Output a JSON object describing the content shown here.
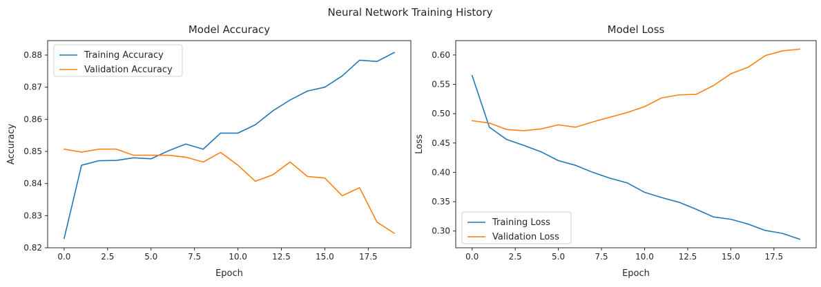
{
  "figure": {
    "suptitle": "Neural Network Training History"
  },
  "chart_data": [
    {
      "type": "line",
      "title": "Model Accuracy",
      "xlabel": "Epoch",
      "ylabel": "Accuracy",
      "xlim": [
        -0.95,
        19.95
      ],
      "ylim": [
        0.82,
        0.8845
      ],
      "xticks": [
        0.0,
        2.5,
        5.0,
        7.5,
        10.0,
        12.5,
        15.0,
        17.5
      ],
      "xtick_labels": [
        "0.0",
        "2.5",
        "5.0",
        "7.5",
        "10.0",
        "12.5",
        "15.0",
        "17.5"
      ],
      "yticks": [
        0.82,
        0.83,
        0.84,
        0.85,
        0.86,
        0.87,
        0.88
      ],
      "ytick_labels": [
        "0.82",
        "0.83",
        "0.84",
        "0.85",
        "0.86",
        "0.87",
        "0.88"
      ],
      "grid": false,
      "legend": "upper-left",
      "x": [
        0,
        1,
        2,
        3,
        4,
        5,
        6,
        7,
        8,
        9,
        10,
        11,
        12,
        13,
        14,
        15,
        16,
        17,
        18,
        19
      ],
      "series": [
        {
          "name": "Training Accuracy",
          "color": "#1f77b4",
          "values": [
            0.8229,
            0.8457,
            0.8471,
            0.8472,
            0.848,
            0.8477,
            0.8502,
            0.8523,
            0.8507,
            0.8557,
            0.8557,
            0.8583,
            0.8626,
            0.866,
            0.8688,
            0.87,
            0.8735,
            0.8784,
            0.878,
            0.8808
          ]
        },
        {
          "name": "Validation Accuracy",
          "color": "#ff7f0e",
          "values": [
            0.8507,
            0.8498,
            0.8507,
            0.8507,
            0.8488,
            0.8488,
            0.8488,
            0.8482,
            0.8467,
            0.8497,
            0.8457,
            0.8407,
            0.8427,
            0.8467,
            0.8422,
            0.8417,
            0.8362,
            0.8387,
            0.828,
            0.8245
          ]
        }
      ]
    },
    {
      "type": "line",
      "title": "Model Loss",
      "xlabel": "Epoch",
      "ylabel": "Loss",
      "xlim": [
        -0.95,
        19.95
      ],
      "ylim": [
        0.2715,
        0.6245
      ],
      "xticks": [
        0.0,
        2.5,
        5.0,
        7.5,
        10.0,
        12.5,
        15.0,
        17.5
      ],
      "xtick_labels": [
        "0.0",
        "2.5",
        "5.0",
        "7.5",
        "10.0",
        "12.5",
        "15.0",
        "17.5"
      ],
      "yticks": [
        0.3,
        0.35,
        0.4,
        0.45,
        0.5,
        0.55,
        0.6
      ],
      "ytick_labels": [
        "0.30",
        "0.35",
        "0.40",
        "0.45",
        "0.50",
        "0.55",
        "0.60"
      ],
      "grid": false,
      "legend": "lower-left",
      "x": [
        0,
        1,
        2,
        3,
        4,
        5,
        6,
        7,
        8,
        9,
        10,
        11,
        12,
        13,
        14,
        15,
        16,
        17,
        18,
        19
      ],
      "series": [
        {
          "name": "Training Loss",
          "color": "#1f77b4",
          "values": [
            0.565,
            0.477,
            0.456,
            0.446,
            0.435,
            0.42,
            0.412,
            0.4,
            0.39,
            0.382,
            0.366,
            0.357,
            0.349,
            0.337,
            0.324,
            0.32,
            0.312,
            0.301,
            0.296,
            0.286
          ]
        },
        {
          "name": "Validation Loss",
          "color": "#ff7f0e",
          "values": [
            0.488,
            0.484,
            0.473,
            0.471,
            0.474,
            0.481,
            0.477,
            0.486,
            0.494,
            0.502,
            0.512,
            0.527,
            0.532,
            0.533,
            0.548,
            0.568,
            0.579,
            0.599,
            0.607,
            0.61
          ]
        }
      ]
    }
  ]
}
